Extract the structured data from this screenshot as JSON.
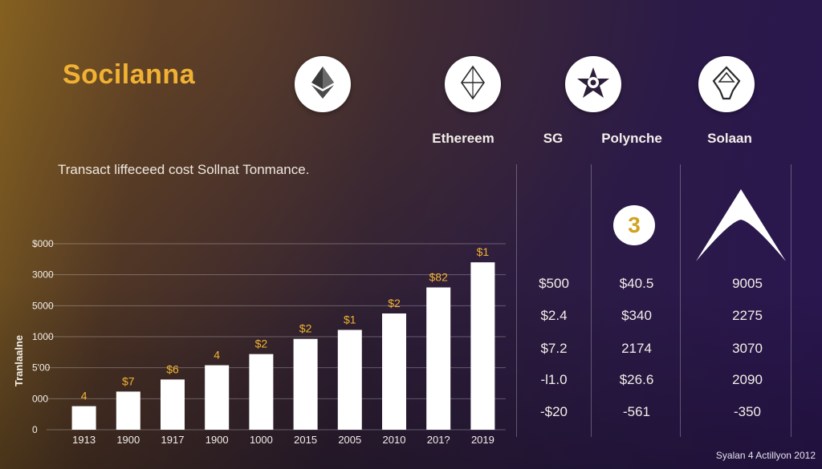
{
  "brand": "Socilanna",
  "subtitle": "Transact liffeceed cost Sollnat Tonmance.",
  "coins": [
    {
      "label": "Ethereem",
      "icon": "ethereum-diamond-icon"
    },
    {
      "label": "SG",
      "icon": "outline-diamond-icon"
    },
    {
      "label": "Polynche",
      "icon": "star-emblem-icon"
    },
    {
      "label": "Solaan",
      "icon": "arrow-pentagon-icon"
    }
  ],
  "badge_text": "3",
  "table": {
    "col1": [
      "$500",
      "$2.4",
      "$7.2",
      "-l1.0",
      "-$20"
    ],
    "col2": [
      "$40.5",
      "$340",
      "2174",
      "$26.6",
      "-561"
    ],
    "col3": [
      "9005",
      "2275",
      "3070",
      "2090",
      "-350"
    ]
  },
  "footnote": "Syalan 4 Actillyon 2012",
  "colors": {
    "brand": "#f1b233",
    "bar": "#ffffff",
    "label": "#f1b233"
  },
  "chart_data": {
    "type": "bar",
    "ylabel": "Tranlaalne",
    "y_tick_labels": [
      "0",
      "000",
      "5'00",
      "1000",
      "5000",
      "3000",
      "$000"
    ],
    "categories": [
      "1913",
      "1900",
      "1917",
      "1900",
      "1000",
      "2015",
      "2005",
      "2010",
      "201?",
      "2019"
    ],
    "values": [
      0.76,
      1.23,
      1.62,
      2.08,
      2.44,
      2.93,
      3.22,
      3.75,
      4.59,
      5.4
    ],
    "bar_labels": [
      "4",
      "$7",
      "$6",
      "4",
      "$2",
      "$2",
      "$1",
      "$2",
      "$82",
      "$1"
    ],
    "ylim": [
      0,
      6
    ],
    "grid": true
  }
}
